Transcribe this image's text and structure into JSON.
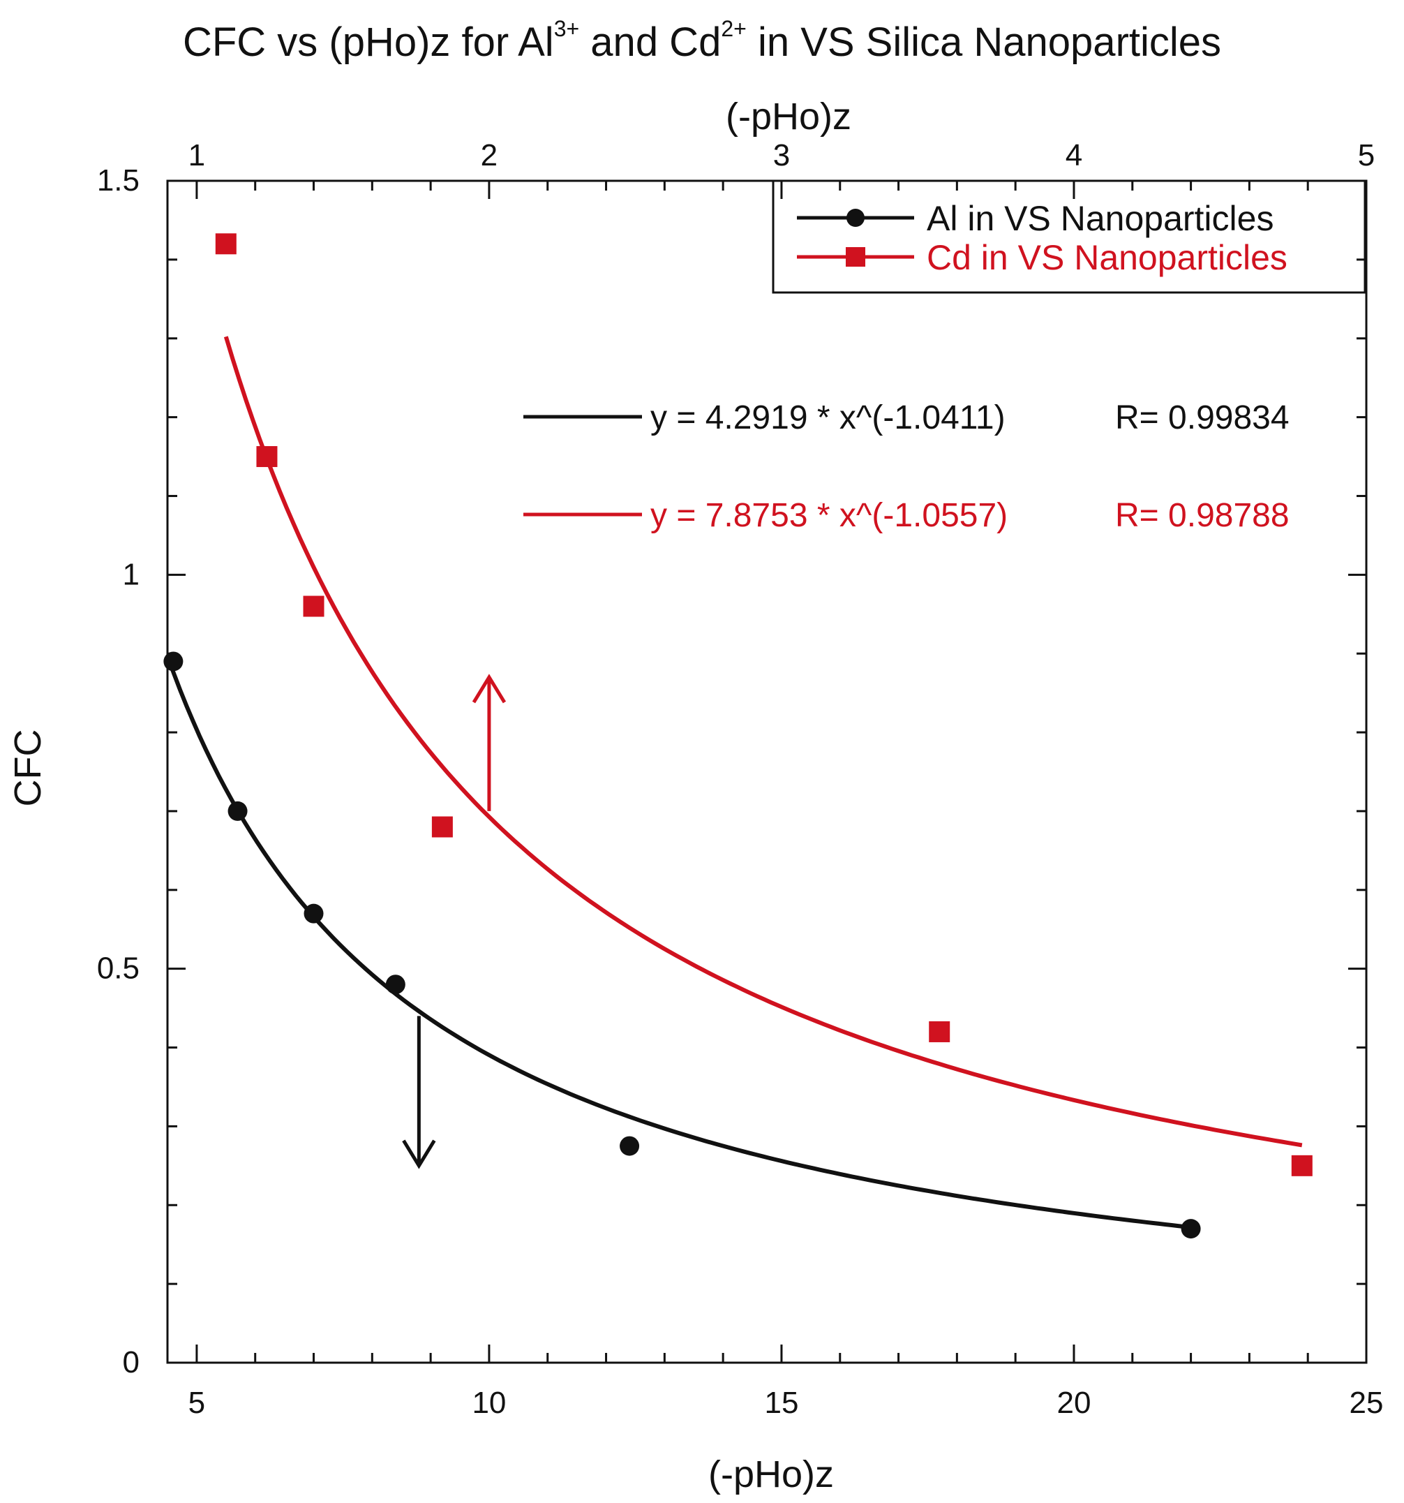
{
  "chart_data": {
    "type": "scatter",
    "title": {
      "prefix": "CFC vs (pHo)z for Al",
      "sup1": "3+",
      "middle": " and Cd",
      "sup2": "2+",
      "suffix": " in VS Silica Nanoparticles"
    },
    "xlabel": "(-pHo)z",
    "x2label": "(-pHo)z",
    "ylabel": "CFC",
    "xlim": [
      4.5,
      25
    ],
    "ylim": [
      0,
      1.5
    ],
    "x2lim": [
      0.9,
      5
    ],
    "x_ticks": [
      "5",
      "10",
      "15",
      "20",
      "25"
    ],
    "x2_ticks": [
      "1",
      "2",
      "3",
      "4",
      "5"
    ],
    "y_ticks": [
      "0",
      "0.5",
      "1",
      "1.5"
    ],
    "legend_position": "top-right",
    "grid": false,
    "series": [
      {
        "name": "Al in VS Nanoparticles",
        "color": "#111111",
        "marker": "circle",
        "x": [
          4.6,
          5.7,
          7.0,
          8.4,
          12.4,
          22.0
        ],
        "y": [
          0.89,
          0.7,
          0.57,
          0.48,
          0.275,
          0.17
        ],
        "fit": {
          "a": 4.2919,
          "b": -1.0411,
          "x_from": 4.5,
          "x_to": 22.0,
          "label": "y = 4.2919 * x^(-1.0411)",
          "r_label": "R= 0.99834"
        }
      },
      {
        "name": "Cd in VS Nanoparticles",
        "color": "#d0121f",
        "marker": "square",
        "x": [
          5.5,
          6.2,
          7.0,
          9.2,
          17.7,
          23.9
        ],
        "y": [
          1.42,
          1.15,
          0.96,
          0.68,
          0.42,
          0.25
        ],
        "fit": {
          "a": 7.8753,
          "b": -1.0557,
          "x_from": 5.5,
          "x_to": 23.9,
          "label": "y = 7.8753 * x^(-1.0557)",
          "r_label": "R= 0.98788"
        }
      }
    ],
    "annotations": [
      {
        "type": "arrow",
        "color": "#d0121f",
        "x": 10,
        "y_from": 0.7,
        "y_to": 0.87,
        "meaning": "right axis"
      },
      {
        "type": "arrow",
        "color": "#111111",
        "x": 8.8,
        "y_from": 0.44,
        "y_to": 0.25,
        "meaning": "left axis"
      }
    ]
  }
}
